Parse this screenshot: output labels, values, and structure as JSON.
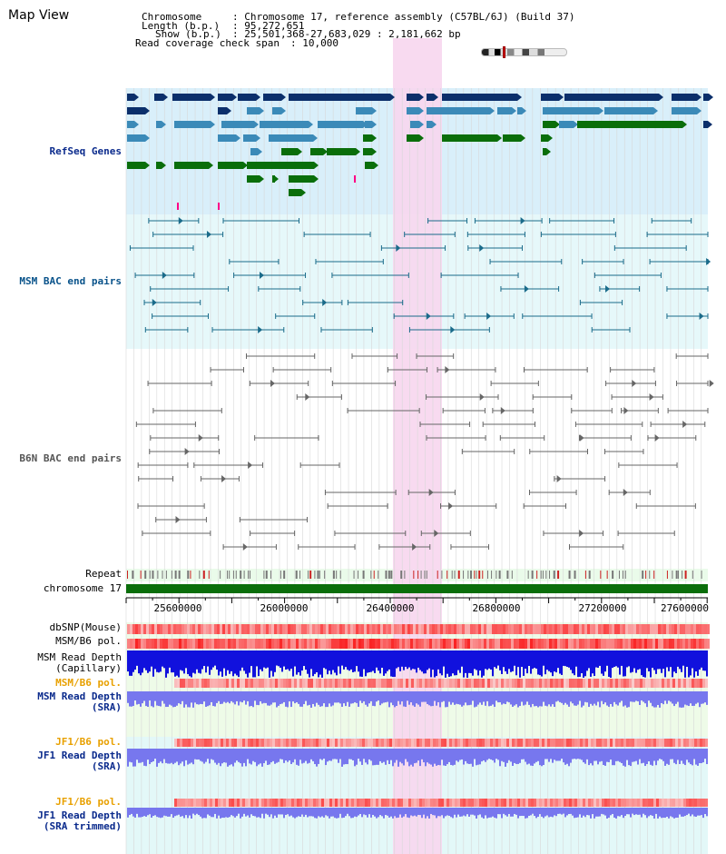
{
  "app": {
    "title": "Map View"
  },
  "info": {
    "chromosome_label": "Chromosome",
    "chromosome_value": ": Chromosome 17, reference assembly (C57BL/6J) (Build 37)",
    "length_label": "Length (b.p.)",
    "length_value": ": 95,272,651",
    "show_label": "Show (b.p.)",
    "show_value": ": 25,501,368-27,683,029 : 2,181,662 bp",
    "span_label": "Read coverage check span",
    "span_value": ": 10,000"
  },
  "tracks": {
    "refseq": "RefSeq Genes",
    "msm_bac": "MSM BAC end pairs",
    "b6n_bac": "B6N BAC end pairs",
    "repeat": "Repeat",
    "chromosome": "chromosome 17",
    "dbsnp": "dbSNP(Mouse)",
    "msm_b6_pol_1": "MSM/B6 pol.",
    "msm_read_depth_cap_1": "MSM Read Depth",
    "msm_read_depth_cap_2": "(Capillary)",
    "msm_b6_pol_2": "MSM/B6 pol.",
    "msm_read_depth_sra_1": "MSM Read Depth",
    "msm_read_depth_sra_2": "(SRA)",
    "jf1_b6_pol_1": "JF1/B6 pol.",
    "jf1_read_depth_sra_1": "JF1 Read Depth",
    "jf1_read_depth_sra_2": "(SRA)",
    "jf1_b6_pol_2": "JF1/B6 pol.",
    "jf1_read_depth_trim_1": "JF1 Read Depth",
    "jf1_read_depth_trim_2": "(SRA trimmed)"
  },
  "axis": {
    "ticks": [
      "25600000",
      "26000000",
      "26400000",
      "26800000",
      "27200000",
      "27600000"
    ]
  },
  "colors": {
    "refseq_dark": "#0b2f6b",
    "refseq_mid": "#3b8ab8",
    "refseq_green": "#0a6e0a",
    "msm_line": "#1a6b8a",
    "b6n_line": "#666666",
    "highlight": "#f7d6ee",
    "chromosome_bar": "#0a6e0a"
  }
}
